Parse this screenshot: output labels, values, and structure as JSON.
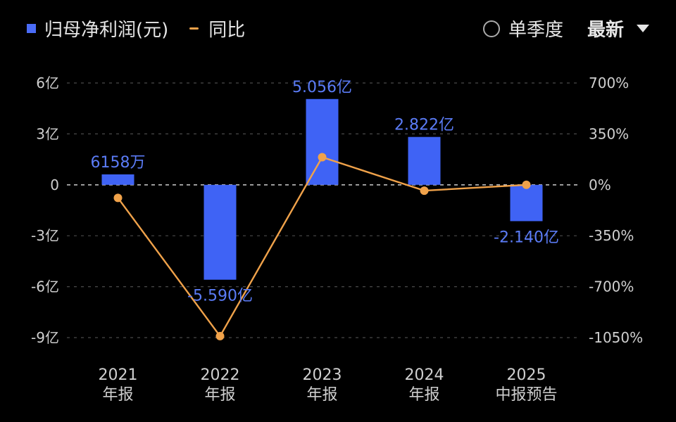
{
  "legend": {
    "series1": "归母净利润(元)",
    "series2": "同比"
  },
  "controls": {
    "quarter_label": "单季度",
    "latest_label": "最新"
  },
  "colors": {
    "bar": "#3f63f5",
    "line": "#f0a24a",
    "label": "#5b7cf7"
  },
  "chart_data": {
    "type": "bar",
    "categories": [
      [
        "2021",
        "年报"
      ],
      [
        "2022",
        "年报"
      ],
      [
        "2023",
        "年报"
      ],
      [
        "2024",
        "年报"
      ],
      [
        "2025",
        "中报预告"
      ]
    ],
    "series": [
      {
        "name": "归母净利润(元)",
        "type": "bar",
        "values": [
          0.6158,
          -5.59,
          5.056,
          2.822,
          -2.14
        ],
        "labels": [
          "6158万",
          "-5.590亿",
          "5.056亿",
          "2.822亿",
          "-2.140亿"
        ]
      },
      {
        "name": "同比",
        "type": "line",
        "values": [
          -90,
          -1040,
          190,
          -40,
          0
        ]
      }
    ],
    "y_left": {
      "ticks": [
        6,
        3,
        0,
        -3,
        -6,
        -9
      ],
      "tick_labels": [
        "6亿",
        "3亿",
        "0",
        "-3亿",
        "-6亿",
        "-9亿"
      ],
      "ylim": [
        -9,
        6
      ]
    },
    "y_right": {
      "ticks": [
        700,
        350,
        0,
        -350,
        -700,
        -1050
      ],
      "tick_labels": [
        "700%",
        "350%",
        "0%",
        "-350%",
        "-700%",
        "-1050%"
      ],
      "ylim": [
        -1050,
        700
      ]
    },
    "grid": true
  }
}
